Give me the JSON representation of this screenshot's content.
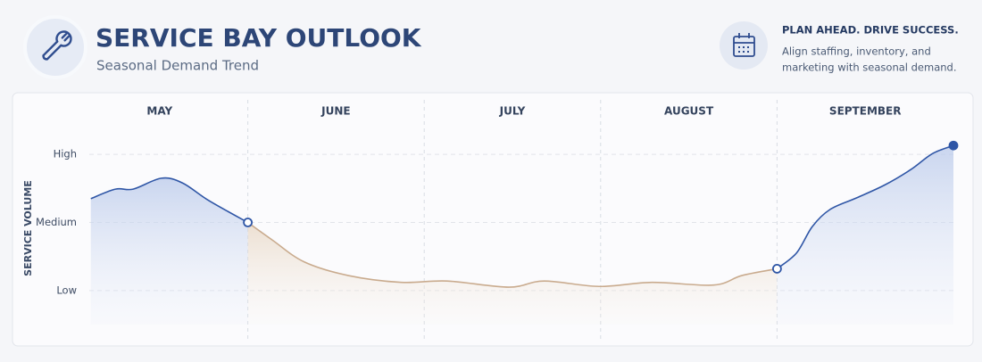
{
  "header": {
    "title": "SERVICE BAY OUTLOOK",
    "subtitle": "Seasonal Demand Trend",
    "tagline": "PLAN AHEAD. DRIVE SUCCESS.",
    "description": [
      "Align staffing, inventory, and",
      "marketing with seasonal demand."
    ]
  },
  "chart_data": {
    "type": "area-line",
    "y_label": "SERVICE VOLUME",
    "xlim": [
      0,
      5
    ],
    "xticks": [
      {
        "value": 0.5,
        "label": "MAY"
      },
      {
        "value": 1.5,
        "label": "JUNE"
      },
      {
        "value": 2.5,
        "label": "JULY"
      },
      {
        "value": 3.5,
        "label": "AUGUST"
      },
      {
        "value": 4.5,
        "label": "SEPTEMBER"
      }
    ],
    "ylim": [
      0.5,
      3.5
    ],
    "yticks": [
      {
        "value": 1,
        "label": "Low"
      },
      {
        "value": 2,
        "label": "Medium"
      },
      {
        "value": 3,
        "label": "High"
      }
    ],
    "grid": true,
    "series": [
      {
        "color": "#2f56a6",
        "end_marker": "open",
        "x": [
          0.11,
          0.25,
          0.35,
          0.51,
          0.63,
          0.78,
          1.0
        ],
        "values": [
          2.35,
          2.49,
          2.49,
          2.65,
          2.58,
          2.32,
          2.0
        ]
      },
      {
        "color": "#c9ab8e",
        "end_marker": "open",
        "x": [
          1.0,
          1.14,
          1.32,
          1.57,
          1.87,
          2.13,
          2.48,
          2.68,
          2.99,
          3.29,
          3.64,
          3.8,
          4.0
        ],
        "values": [
          2.0,
          1.74,
          1.42,
          1.22,
          1.12,
          1.14,
          1.05,
          1.14,
          1.06,
          1.12,
          1.08,
          1.22,
          1.32
        ]
      },
      {
        "color": "#2f56a6",
        "end_marker": "filled",
        "x": [
          4.0,
          4.11,
          4.2,
          4.3,
          4.45,
          4.61,
          4.76,
          4.88,
          5.0
        ],
        "values": [
          1.32,
          1.55,
          1.94,
          2.19,
          2.36,
          2.55,
          2.78,
          3.01,
          3.13
        ]
      }
    ]
  }
}
